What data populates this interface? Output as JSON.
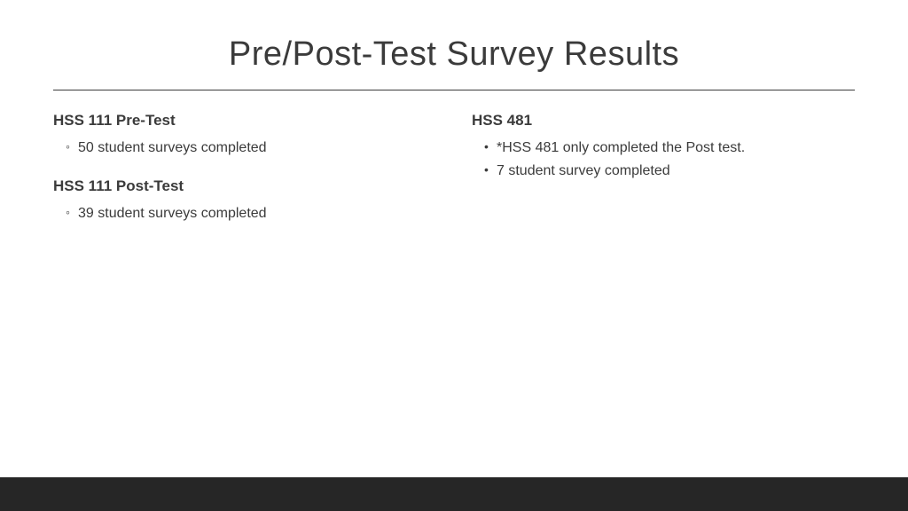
{
  "title": "Pre/Post-Test Survey Results",
  "left_column": {
    "sections": [
      {
        "heading": "HSS 111 Pre-Test",
        "items": [
          "50 student surveys completed"
        ]
      },
      {
        "heading": "HSS 111 Post-Test",
        "items": [
          "39 student surveys completed"
        ]
      }
    ]
  },
  "right_column": {
    "sections": [
      {
        "heading": "HSS 481",
        "items": [
          "*HSS 481 only completed the Post test.",
          "7 student survey completed"
        ]
      }
    ]
  },
  "colors": {
    "text": "#3b3b3b",
    "background": "#ffffff",
    "footer": "#262626"
  }
}
